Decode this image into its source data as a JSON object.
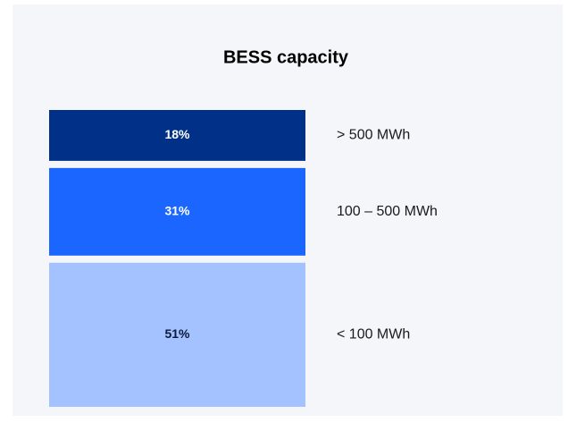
{
  "chart_data": {
    "type": "stacked_bar",
    "title": "BESS capacity",
    "categories": [
      "> 500 MWh",
      "100 – 500 MWh",
      "< 100 MWh"
    ],
    "values": [
      18,
      31,
      51
    ],
    "value_labels": [
      "18%",
      "31%",
      "51%"
    ],
    "colors": [
      "#003087",
      "#1a66ff",
      "#a3c2ff"
    ]
  }
}
